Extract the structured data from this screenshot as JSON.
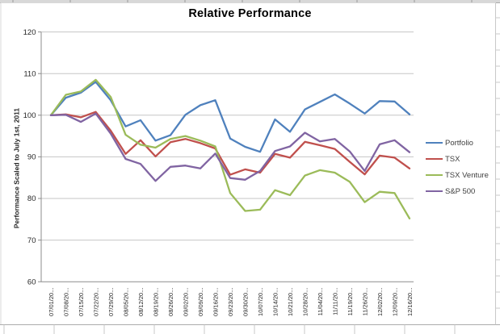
{
  "chart_data": {
    "type": "line",
    "title": "Relative Performance",
    "xlabel": "",
    "ylabel": "Performance Scaled to July 1st, 2011",
    "ylim": [
      60,
      120
    ],
    "yticks": [
      60,
      70,
      80,
      90,
      100,
      110,
      120
    ],
    "grid": true,
    "legend_position": "right",
    "categories": [
      "07/01/20...",
      "07/08/20...",
      "07/15/20...",
      "07/22/20...",
      "07/29/20...",
      "08/05/20...",
      "08/12/20...",
      "08/19/20...",
      "08/26/20...",
      "09/02/20...",
      "09/09/20...",
      "09/16/20...",
      "09/23/20...",
      "09/30/20...",
      "10/07/20...",
      "10/14/20...",
      "10/21/20...",
      "10/28/20...",
      "11/04/20...",
      "11/11/20...",
      "11/19/20...",
      "11/26/20...",
      "12/02/20...",
      "12/09/20...",
      "12/16/20..."
    ],
    "series": [
      {
        "name": "Portfolio",
        "color": "#4F81BD",
        "values": [
          100,
          104.2,
          105.4,
          108.0,
          103.6,
          97.3,
          98.8,
          93.9,
          95.2,
          100.1,
          102.4,
          103.6,
          94.4,
          92.4,
          91.2,
          99.0,
          96.0,
          101.4,
          103.2,
          105.0,
          102.8,
          100.4,
          103.4,
          103.3,
          100.2
        ]
      },
      {
        "name": "TSX",
        "color": "#C0504D",
        "values": [
          100,
          100.2,
          99.5,
          100.8,
          96.3,
          90.7,
          94.0,
          90.1,
          93.5,
          94.3,
          93.3,
          92.0,
          85.7,
          87.0,
          86.2,
          90.7,
          89.8,
          93.6,
          92.8,
          91.9,
          88.8,
          85.8,
          90.3,
          89.8,
          87.2
        ]
      },
      {
        "name": "TSX Venture",
        "color": "#9BBB59",
        "values": [
          100,
          104.9,
          105.7,
          108.5,
          104.4,
          95.3,
          92.9,
          92.2,
          94.3,
          95.0,
          93.9,
          92.5,
          81.3,
          77.0,
          77.3,
          82.0,
          80.8,
          85.5,
          86.8,
          86.2,
          84.0,
          79.1,
          81.6,
          81.3,
          75.2
        ]
      },
      {
        "name": "S&P 500",
        "color": "#8064A2",
        "values": [
          100,
          100.1,
          98.4,
          100.4,
          95.6,
          89.5,
          88.3,
          84.2,
          87.6,
          87.9,
          87.2,
          90.8,
          84.9,
          84.5,
          86.6,
          91.4,
          92.5,
          95.8,
          93.7,
          94.3,
          91.3,
          86.6,
          93.0,
          94.0,
          91.1
        ]
      }
    ]
  },
  "colors": {
    "title_text": "#000000",
    "tick_text": "#262626",
    "legend_text": "#404040",
    "gridline": "#C6C6C6",
    "axis": "#8C8C8C",
    "chart_frame": "#D9D9D9",
    "sheet_row_line": "#ABABAB",
    "sheet_cell_line": "#C9C9C9",
    "sheet_top_band": "#D8D8D8"
  }
}
